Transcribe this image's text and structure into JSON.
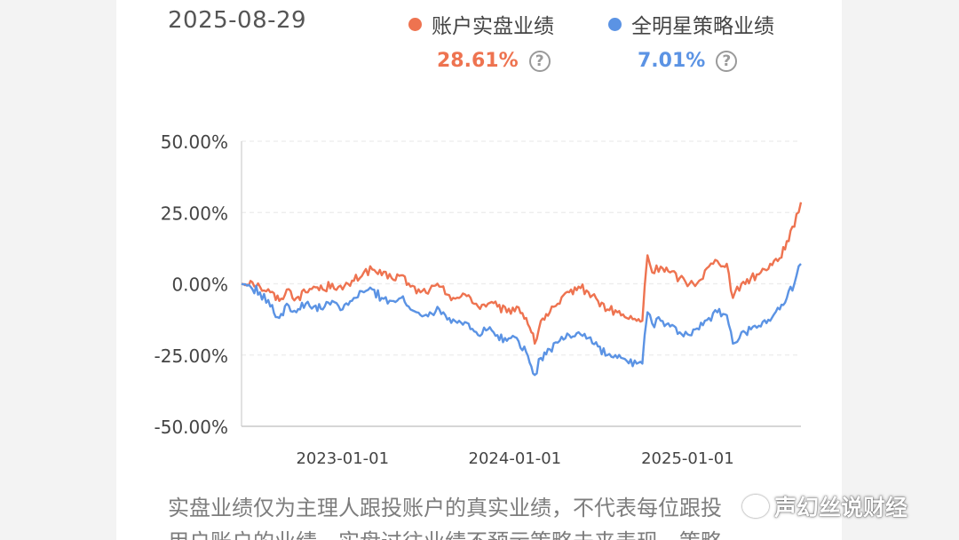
{
  "header": {
    "date": "2025-08-29"
  },
  "legend": [
    {
      "label": "账户实盘业绩",
      "value": "28.61%",
      "color": "#ee7350",
      "help": "?"
    },
    {
      "label": "全明星策略业绩",
      "value": "7.01%",
      "color": "#5b93e4",
      "help": "?"
    }
  ],
  "footnote": {
    "line1": "实盘业绩仅为主理人跟投账户的真实业绩，不代表每位跟投",
    "line2": "用户账户的业绩，实盘过往业绩不预示策略未来表现，策略"
  },
  "watermark": {
    "text": "声幻丝说财经"
  },
  "chart_data": {
    "type": "line",
    "title": "",
    "xlabel": "",
    "ylabel": "",
    "x_start": "2022-06-01",
    "x_end": "2025-08-29",
    "ylim": [
      -50,
      50
    ],
    "y_ticks": [
      50,
      25,
      0,
      -25,
      -50
    ],
    "y_tick_labels": [
      "50.00%",
      "25.00%",
      "0.00%",
      "-25.00%",
      "-50.00%"
    ],
    "x_ticks": [
      "2023-01-01",
      "2024-01-01",
      "2025-01-01"
    ],
    "grid": true,
    "series": [
      {
        "name": "账户实盘业绩",
        "color": "#ee7350",
        "points": [
          [
            "2022-06-01",
            0
          ],
          [
            "2022-06-20",
            1
          ],
          [
            "2022-07-10",
            -1
          ],
          [
            "2022-08-01",
            -3
          ],
          [
            "2022-08-20",
            -6
          ],
          [
            "2022-09-05",
            -2
          ],
          [
            "2022-09-25",
            -5
          ],
          [
            "2022-10-15",
            -3
          ],
          [
            "2022-11-01",
            -1
          ],
          [
            "2022-11-20",
            -2
          ],
          [
            "2022-12-10",
            0
          ],
          [
            "2023-01-01",
            -2
          ],
          [
            "2023-01-25",
            1
          ],
          [
            "2023-02-15",
            4
          ],
          [
            "2023-03-05",
            5
          ],
          [
            "2023-03-25",
            3
          ],
          [
            "2023-04-15",
            2
          ],
          [
            "2023-05-05",
            3
          ],
          [
            "2023-05-25",
            -1
          ],
          [
            "2023-06-15",
            -3
          ],
          [
            "2023-07-05",
            -2
          ],
          [
            "2023-07-25",
            -1
          ],
          [
            "2023-08-15",
            -4
          ],
          [
            "2023-09-05",
            -5
          ],
          [
            "2023-09-25",
            -4
          ],
          [
            "2023-10-15",
            -8
          ],
          [
            "2023-11-05",
            -7
          ],
          [
            "2023-11-25",
            -8
          ],
          [
            "2023-12-15",
            -10
          ],
          [
            "2024-01-05",
            -8
          ],
          [
            "2024-01-25",
            -12
          ],
          [
            "2024-02-05",
            -17
          ],
          [
            "2024-02-12",
            -21
          ],
          [
            "2024-02-25",
            -13
          ],
          [
            "2024-03-15",
            -10
          ],
          [
            "2024-04-05",
            -7
          ],
          [
            "2024-04-25",
            -3
          ],
          [
            "2024-05-15",
            -1
          ],
          [
            "2024-06-05",
            -3
          ],
          [
            "2024-06-25",
            -6
          ],
          [
            "2024-07-15",
            -9
          ],
          [
            "2024-08-05",
            -10
          ],
          [
            "2024-08-25",
            -12
          ],
          [
            "2024-09-15",
            -13
          ],
          [
            "2024-09-27",
            -13
          ],
          [
            "2024-10-02",
            -1
          ],
          [
            "2024-10-08",
            10
          ],
          [
            "2024-10-18",
            4
          ],
          [
            "2024-11-05",
            6
          ],
          [
            "2024-11-25",
            4
          ],
          [
            "2024-12-15",
            2
          ],
          [
            "2025-01-05",
            0
          ],
          [
            "2025-01-25",
            1
          ],
          [
            "2025-02-15",
            6
          ],
          [
            "2025-03-05",
            8
          ],
          [
            "2025-03-25",
            7
          ],
          [
            "2025-04-07",
            -5
          ],
          [
            "2025-04-25",
            0
          ],
          [
            "2025-05-15",
            2
          ],
          [
            "2025-06-05",
            4
          ],
          [
            "2025-06-25",
            7
          ],
          [
            "2025-07-15",
            9
          ],
          [
            "2025-07-30",
            15
          ],
          [
            "2025-08-15",
            20
          ],
          [
            "2025-08-29",
            28.61
          ]
        ]
      },
      {
        "name": "全明星策略业绩",
        "color": "#5b93e4",
        "points": [
          [
            "2022-06-01",
            0
          ],
          [
            "2022-06-20",
            -1
          ],
          [
            "2022-07-10",
            -3
          ],
          [
            "2022-08-01",
            -8
          ],
          [
            "2022-08-20",
            -12
          ],
          [
            "2022-09-05",
            -7
          ],
          [
            "2022-09-25",
            -10
          ],
          [
            "2022-10-15",
            -7
          ],
          [
            "2022-11-01",
            -8
          ],
          [
            "2022-11-20",
            -9
          ],
          [
            "2022-12-10",
            -6
          ],
          [
            "2023-01-01",
            -9
          ],
          [
            "2023-01-25",
            -5
          ],
          [
            "2023-02-15",
            -3
          ],
          [
            "2023-03-05",
            -2
          ],
          [
            "2023-03-25",
            -5
          ],
          [
            "2023-04-15",
            -6
          ],
          [
            "2023-05-05",
            -5
          ],
          [
            "2023-05-25",
            -9
          ],
          [
            "2023-06-15",
            -11
          ],
          [
            "2023-07-05",
            -10
          ],
          [
            "2023-07-25",
            -9
          ],
          [
            "2023-08-15",
            -12
          ],
          [
            "2023-09-05",
            -13
          ],
          [
            "2023-09-25",
            -14
          ],
          [
            "2023-10-15",
            -18
          ],
          [
            "2023-11-05",
            -16
          ],
          [
            "2023-11-25",
            -18
          ],
          [
            "2023-12-15",
            -20
          ],
          [
            "2024-01-05",
            -19
          ],
          [
            "2024-01-25",
            -24
          ],
          [
            "2024-02-05",
            -29
          ],
          [
            "2024-02-12",
            -32
          ],
          [
            "2024-02-25",
            -26
          ],
          [
            "2024-03-15",
            -23
          ],
          [
            "2024-04-05",
            -20
          ],
          [
            "2024-04-25",
            -18
          ],
          [
            "2024-05-15",
            -17
          ],
          [
            "2024-06-05",
            -19
          ],
          [
            "2024-06-25",
            -22
          ],
          [
            "2024-07-15",
            -25
          ],
          [
            "2024-08-05",
            -26
          ],
          [
            "2024-08-25",
            -27
          ],
          [
            "2024-09-15",
            -28
          ],
          [
            "2024-09-27",
            -28
          ],
          [
            "2024-10-02",
            -18
          ],
          [
            "2024-10-08",
            -10
          ],
          [
            "2024-10-18",
            -14
          ],
          [
            "2024-11-05",
            -13
          ],
          [
            "2024-11-25",
            -15
          ],
          [
            "2024-12-15",
            -17
          ],
          [
            "2025-01-05",
            -18
          ],
          [
            "2025-01-25",
            -16
          ],
          [
            "2025-02-15",
            -12
          ],
          [
            "2025-03-05",
            -10
          ],
          [
            "2025-03-25",
            -11
          ],
          [
            "2025-04-07",
            -21
          ],
          [
            "2025-04-25",
            -17
          ],
          [
            "2025-05-15",
            -16
          ],
          [
            "2025-06-05",
            -15
          ],
          [
            "2025-06-25",
            -13
          ],
          [
            "2025-07-15",
            -9
          ],
          [
            "2025-07-30",
            -5
          ],
          [
            "2025-08-15",
            0
          ],
          [
            "2025-08-29",
            7.01
          ]
        ]
      }
    ]
  }
}
